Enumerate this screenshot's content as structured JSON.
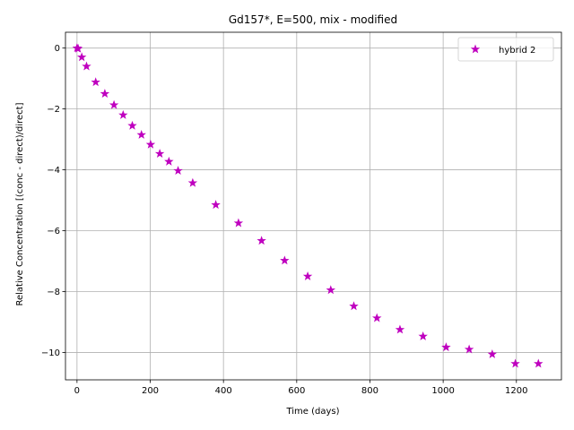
{
  "chart_data": {
    "type": "scatter",
    "title": "Gd157*, E=500, mix - modified",
    "xlabel": "Time (days)",
    "ylabel": "Relative Concentration [(conc - direct)/direct]",
    "xlim": [
      -31.5,
      1323
    ],
    "ylim": [
      -10.9,
      0.52
    ],
    "xticks": [
      0,
      200,
      400,
      600,
      800,
      1000,
      1200
    ],
    "yticks": [
      0,
      -2,
      -4,
      -6,
      -8,
      -10
    ],
    "xtick_labels": [
      "0",
      "200",
      "400",
      "600",
      "800",
      "1000",
      "1200"
    ],
    "ytick_labels": [
      "0",
      "−2",
      "−4",
      "−6",
      "−8",
      "−10"
    ],
    "grid": true,
    "legend": {
      "position": "top-right"
    },
    "series": [
      {
        "name": "hybrid 2",
        "marker": "star",
        "color": "#bf00bf",
        "x": [
          0,
          3,
          13,
          26,
          51,
          76,
          101,
          126,
          151,
          176,
          201,
          226,
          251,
          276,
          316,
          379,
          441,
          504,
          567,
          630,
          693,
          756,
          819,
          882,
          945,
          1008,
          1071,
          1134,
          1197,
          1260
        ],
        "y": [
          0,
          -0.02,
          -0.3,
          -0.6,
          -1.12,
          -1.5,
          -1.87,
          -2.2,
          -2.55,
          -2.85,
          -3.17,
          -3.47,
          -3.73,
          -4.03,
          -4.43,
          -5.15,
          -5.75,
          -6.33,
          -6.98,
          -7.5,
          -7.95,
          -8.48,
          -8.87,
          -9.25,
          -9.47,
          -9.83,
          -9.9,
          -10.06,
          -10.37,
          -10.37
        ]
      }
    ]
  }
}
